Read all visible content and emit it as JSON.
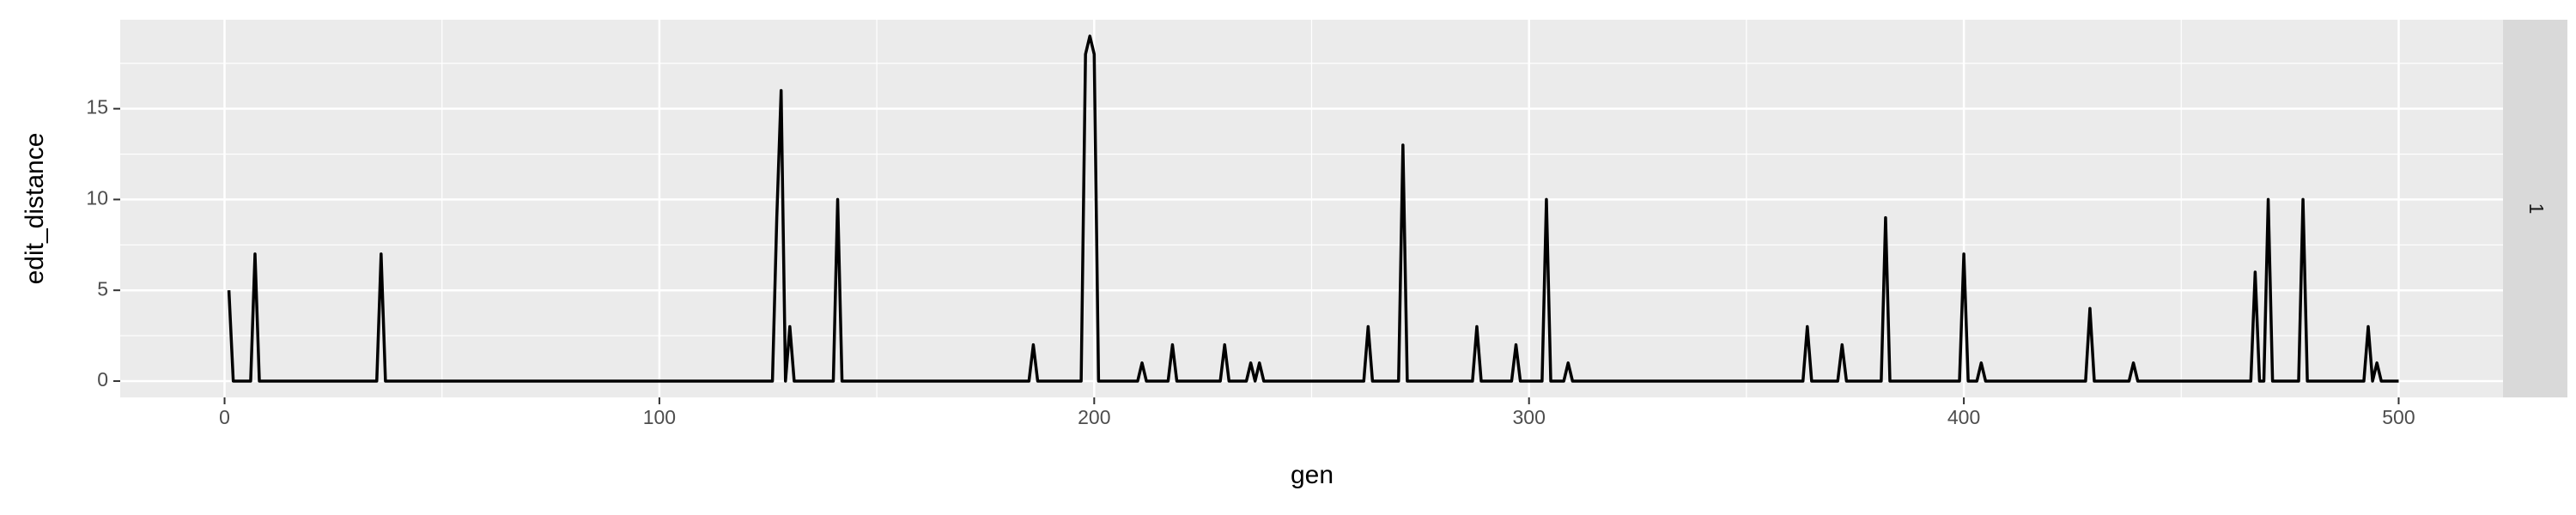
{
  "chart_data": {
    "type": "line",
    "x_label": "gen",
    "y_label": "edit_distance",
    "facet_label": "1",
    "x": [
      1,
      2,
      6,
      7,
      8,
      35,
      36,
      37,
      126,
      127,
      128,
      129,
      130,
      131,
      140,
      141,
      142,
      185,
      186,
      187,
      197,
      198,
      199,
      200,
      201,
      210,
      211,
      212,
      217,
      218,
      219,
      229,
      230,
      231,
      235,
      236,
      237,
      238,
      239,
      262,
      263,
      264,
      270,
      271,
      272,
      287,
      288,
      289,
      296,
      297,
      298,
      303,
      304,
      305,
      308,
      309,
      310,
      363,
      364,
      365,
      371,
      372,
      373,
      381,
      382,
      383,
      399,
      400,
      401,
      403,
      404,
      405,
      428,
      429,
      430,
      438,
      439,
      440,
      466,
      467,
      468,
      469,
      470,
      471,
      477,
      478,
      479,
      492,
      493,
      494,
      495,
      496,
      500
    ],
    "series": [
      {
        "name": "edit_distance",
        "color": "#000000",
        "values": [
          5,
          0,
          0,
          7,
          0,
          0,
          7,
          0,
          0,
          9,
          16,
          0,
          3,
          0,
          0,
          10,
          0,
          0,
          2,
          0,
          0,
          18,
          19,
          18,
          0,
          0,
          1,
          0,
          0,
          2,
          0,
          0,
          2,
          0,
          0,
          1,
          0,
          1,
          0,
          0,
          3,
          0,
          0,
          13,
          0,
          0,
          3,
          0,
          0,
          2,
          0,
          0,
          10,
          0,
          0,
          1,
          0,
          0,
          3,
          0,
          0,
          2,
          0,
          0,
          9,
          0,
          0,
          7,
          0,
          0,
          1,
          0,
          0,
          4,
          0,
          0,
          1,
          0,
          0,
          6,
          0,
          0,
          10,
          0,
          0,
          10,
          0,
          0,
          3,
          0,
          1,
          0,
          0
        ]
      }
    ],
    "xlim": [
      -24,
      524
    ],
    "ylim": [
      -0.9,
      19.9
    ],
    "xticks": [
      0,
      100,
      200,
      300,
      400,
      500
    ],
    "yticks": [
      0,
      5,
      10,
      15
    ],
    "x_minor_ticks": [
      50,
      150,
      250,
      350,
      450
    ],
    "y_minor_ticks": [
      2.5,
      7.5,
      12.5,
      17.5
    ],
    "grid": true
  }
}
